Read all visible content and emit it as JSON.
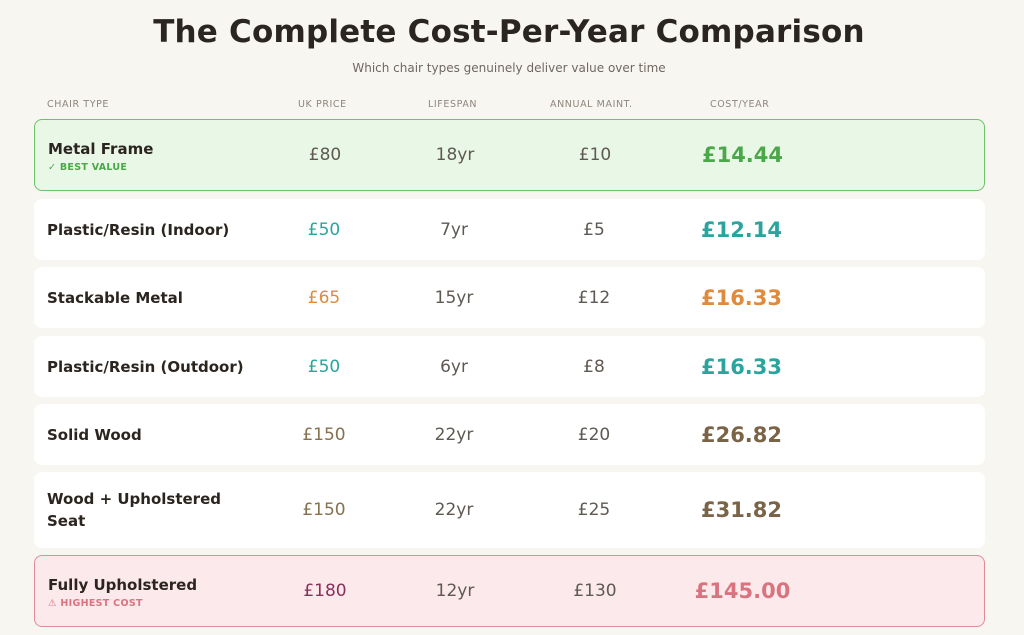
{
  "header": {
    "title": "The Complete Cost-Per-Year Comparison",
    "subtitle": "Which chair types genuinely deliver value over time"
  },
  "columns": {
    "chair_type": "CHAIR TYPE",
    "uk_price": "UK PRICE",
    "lifespan": "LIFESPAN",
    "annual_maint": "ANNUAL MAINT.",
    "cost_year": "COST/YEAR"
  },
  "rows": [
    {
      "name": "Metal Frame",
      "badge": "✓ BEST VALUE",
      "price": "£80",
      "lifespan": "18yr",
      "maint": "£10",
      "cost": "£14.44"
    },
    {
      "name": "Plastic/Resin (Indoor)",
      "badge": "",
      "price": "£50",
      "lifespan": "7yr",
      "maint": "£5",
      "cost": "£12.14"
    },
    {
      "name": "Stackable Metal",
      "badge": "",
      "price": "£65",
      "lifespan": "15yr",
      "maint": "£12",
      "cost": "£16.33"
    },
    {
      "name": "Plastic/Resin (Outdoor)",
      "badge": "",
      "price": "£50",
      "lifespan": "6yr",
      "maint": "£8",
      "cost": "£16.33"
    },
    {
      "name": "Solid Wood",
      "badge": "",
      "price": "£150",
      "lifespan": "22yr",
      "maint": "£20",
      "cost": "£26.82"
    },
    {
      "name": "Wood + Upholstered Seat",
      "badge": "",
      "price": "£150",
      "lifespan": "22yr",
      "maint": "£25",
      "cost": "£31.82"
    },
    {
      "name": "Fully Upholstered",
      "badge": "⚠ HIGHEST COST",
      "price": "£180",
      "lifespan": "12yr",
      "maint": "£130",
      "cost": "£145.00"
    }
  ],
  "colors": {
    "best_border": "#6cc36a",
    "best_bg": "#e9f7e7",
    "worst_border": "#e18a98",
    "worst_bg": "#fce9ec",
    "teal": "#2aa59e",
    "orange": "#df8a3c",
    "brown": "#7a6346",
    "green": "#4aa848",
    "red": "#d8737f"
  }
}
